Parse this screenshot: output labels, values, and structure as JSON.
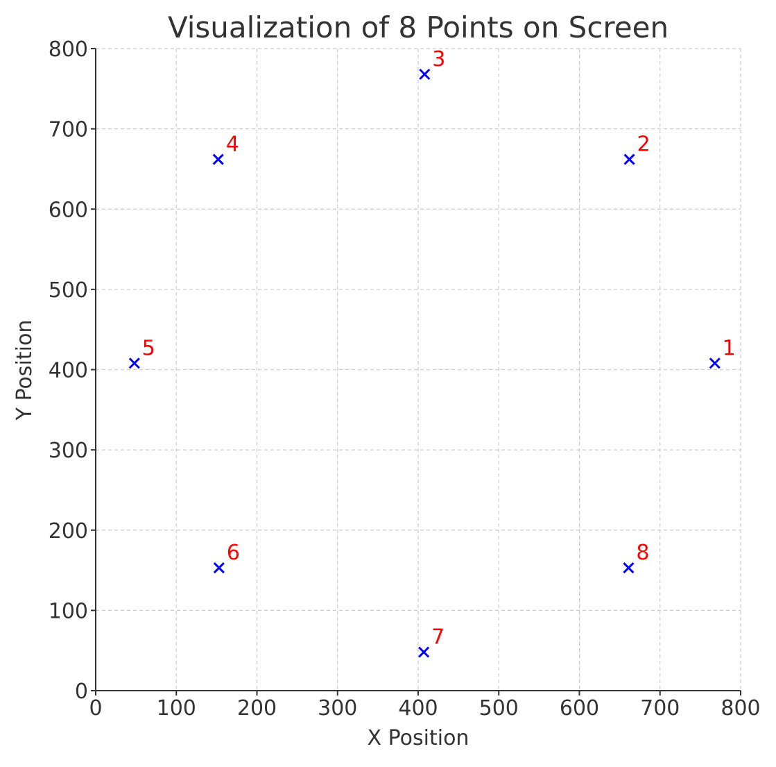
{
  "chart_data": {
    "type": "scatter",
    "title": "Visualization of 8 Points on Screen",
    "xlabel": "X Position",
    "ylabel": "Y Position",
    "xlim": [
      0,
      800
    ],
    "ylim": [
      0,
      800
    ],
    "xticks": [
      0,
      100,
      200,
      300,
      400,
      500,
      600,
      700,
      800
    ],
    "yticks": [
      0,
      100,
      200,
      300,
      400,
      500,
      600,
      700,
      800
    ],
    "grid": true,
    "marker": "x",
    "marker_color": "#0000ff",
    "label_color": "#ff0000",
    "points": [
      {
        "label": "1",
        "x": 768,
        "y": 408
      },
      {
        "label": "2",
        "x": 662,
        "y": 662
      },
      {
        "label": "3",
        "x": 408,
        "y": 768
      },
      {
        "label": "4",
        "x": 152,
        "y": 662
      },
      {
        "label": "5",
        "x": 48,
        "y": 408
      },
      {
        "label": "6",
        "x": 153,
        "y": 153
      },
      {
        "label": "7",
        "x": 407,
        "y": 48
      },
      {
        "label": "8",
        "x": 661,
        "y": 153
      }
    ]
  }
}
